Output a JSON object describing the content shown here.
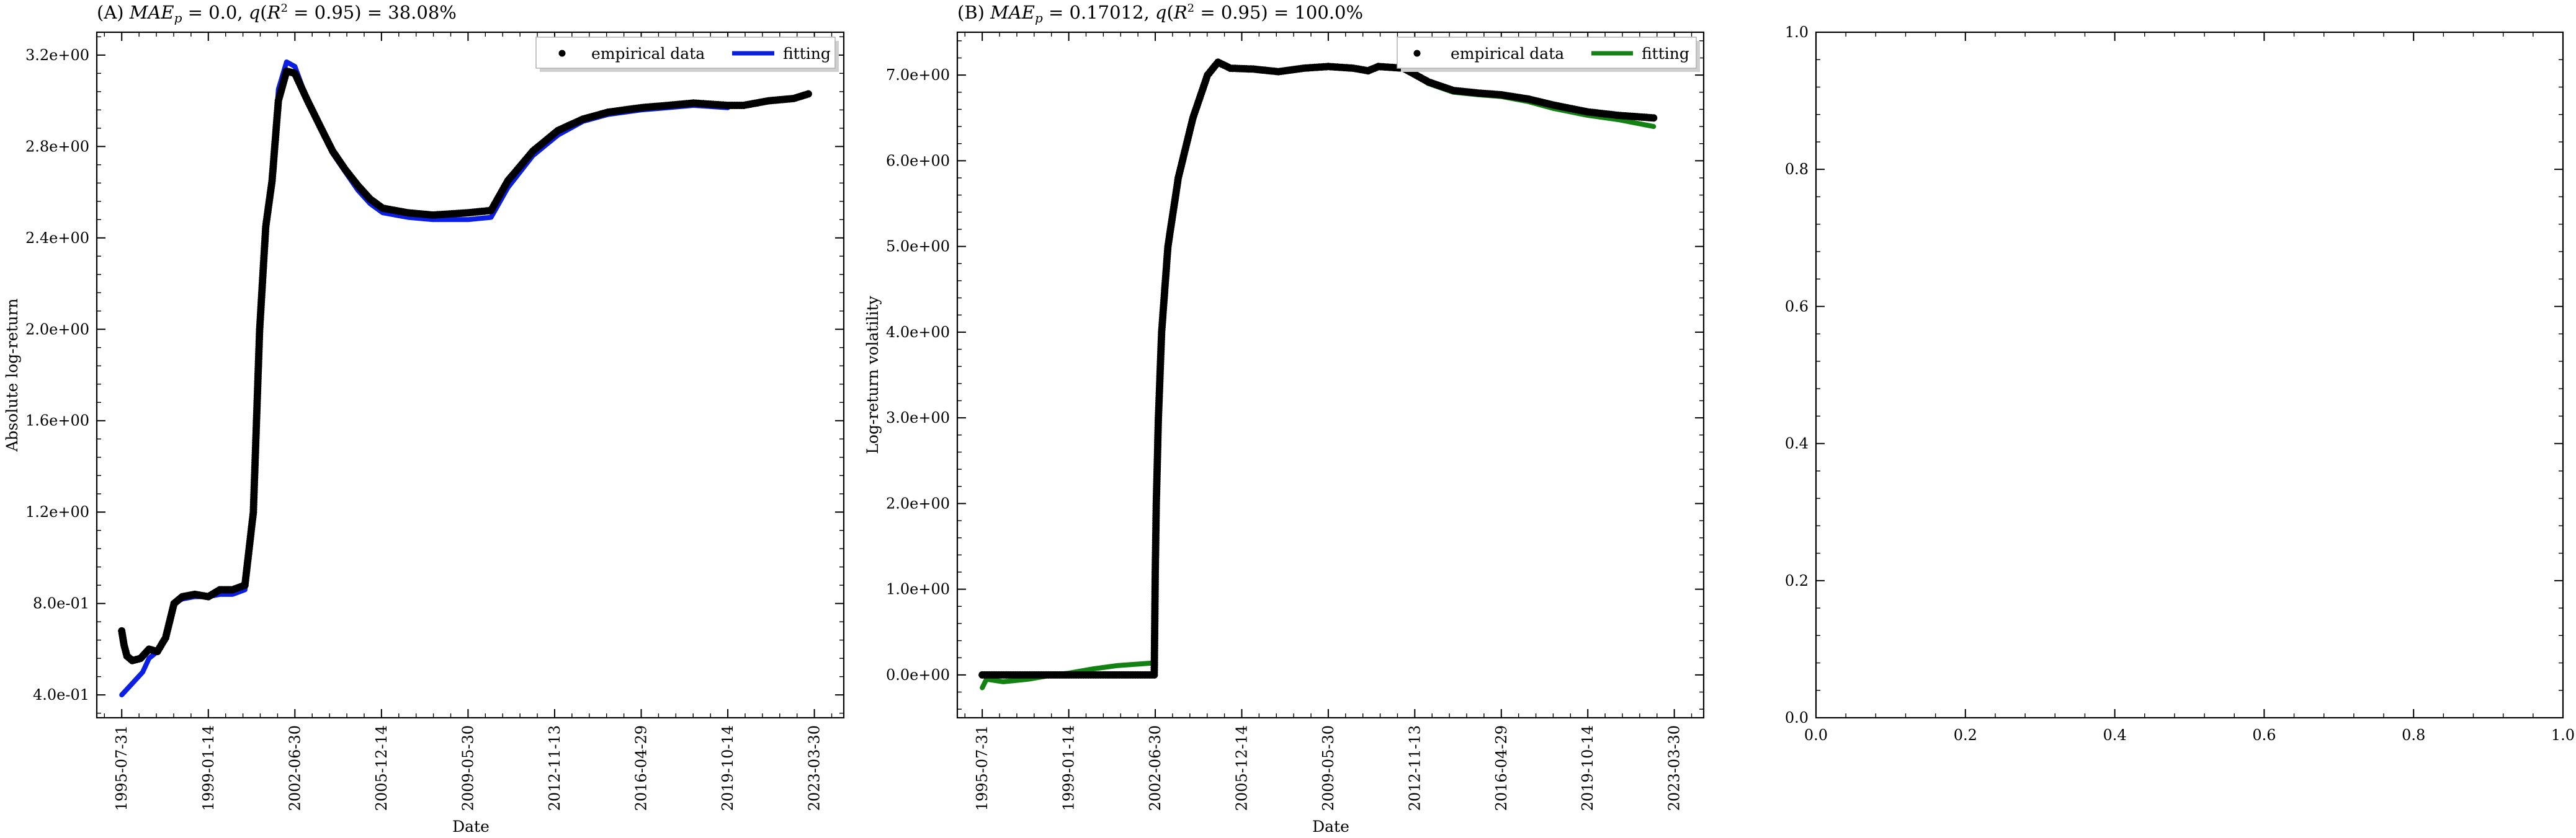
{
  "chart_data": [
    {
      "type": "scatter",
      "title": "(A) MAE_p = 0.0, q(R² = 0.95) = 38.08%",
      "title_parts": {
        "label": "(A) ",
        "mae": "MAE",
        "mae_sub": "p",
        "mae_value": " = 0.0, ",
        "q": "q",
        "q_open": "(",
        "r": "R",
        "r_sup": "2",
        "q_rest": " = 0.95) = 38.08%"
      },
      "xlabel": "Date",
      "ylabel": "Absolute log-return",
      "x_ticks": [
        "1995-07-31",
        "1999-01-14",
        "2002-06-30",
        "2005-12-14",
        "2009-05-30",
        "2012-11-13",
        "2016-04-29",
        "2019-10-14",
        "2023-03-30"
      ],
      "y_ticks": [
        "4.0e-01",
        "8.0e-01",
        "1.2e+00",
        "1.6e+00",
        "2.0e+00",
        "2.4e+00",
        "2.8e+00",
        "3.2e+00"
      ],
      "y_tick_values": [
        0.4,
        0.8,
        1.2,
        1.6,
        2.0,
        2.4,
        2.8,
        3.2
      ],
      "xlim": [
        "1994-08-01",
        "2024-06-01"
      ],
      "ylim": [
        0.3,
        3.3
      ],
      "legend": {
        "position": "top-right",
        "entries": [
          "empirical data",
          "fitting"
        ]
      },
      "series": [
        {
          "name": "empirical data",
          "style": "dots",
          "color": "#000000",
          "points": [
            [
              "1995-07-31",
              0.68
            ],
            [
              "1995-09-01",
              0.62
            ],
            [
              "1995-10-15",
              0.57
            ],
            [
              "1996-01-01",
              0.55
            ],
            [
              "1996-05-01",
              0.56
            ],
            [
              "1996-09-01",
              0.6
            ],
            [
              "1997-01-01",
              0.59
            ],
            [
              "1997-05-01",
              0.65
            ],
            [
              "1997-09-01",
              0.8
            ],
            [
              "1998-01-01",
              0.83
            ],
            [
              "1998-07-01",
              0.84
            ],
            [
              "1999-01-14",
              0.83
            ],
            [
              "1999-07-01",
              0.86
            ],
            [
              "2000-01-01",
              0.86
            ],
            [
              "2000-07-01",
              0.88
            ],
            [
              "2000-11-01",
              1.2
            ],
            [
              "2001-02-01",
              2.0
            ],
            [
              "2001-05-01",
              2.45
            ],
            [
              "2001-08-01",
              2.65
            ],
            [
              "2001-11-01",
              3.0
            ],
            [
              "2002-03-01",
              3.13
            ],
            [
              "2002-06-30",
              3.12
            ],
            [
              "2003-01-01",
              3.0
            ],
            [
              "2003-07-01",
              2.89
            ],
            [
              "2004-01-01",
              2.78
            ],
            [
              "2004-07-01",
              2.7
            ],
            [
              "2005-01-01",
              2.63
            ],
            [
              "2005-07-01",
              2.57
            ],
            [
              "2006-01-01",
              2.53
            ],
            [
              "2007-01-01",
              2.51
            ],
            [
              "2008-01-01",
              2.5
            ],
            [
              "2009-05-30",
              2.51
            ],
            [
              "2010-05-01",
              2.52
            ],
            [
              "2011-01-01",
              2.65
            ],
            [
              "2012-01-01",
              2.78
            ],
            [
              "2013-01-01",
              2.87
            ],
            [
              "2014-01-01",
              2.92
            ],
            [
              "2015-01-01",
              2.95
            ],
            [
              "2016-04-29",
              2.97
            ],
            [
              "2017-06-01",
              2.98
            ],
            [
              "2018-06-01",
              2.99
            ],
            [
              "2019-10-14",
              2.98
            ],
            [
              "2020-06-01",
              2.98
            ],
            [
              "2021-06-01",
              3.0
            ],
            [
              "2022-06-01",
              3.01
            ],
            [
              "2023-01-01",
              3.03
            ]
          ]
        },
        {
          "name": "fitting",
          "style": "line",
          "color": "#0a1ee6",
          "points": [
            [
              "1995-07-31",
              0.4
            ],
            [
              "1995-12-01",
              0.44
            ],
            [
              "1996-06-01",
              0.5
            ],
            [
              "1996-09-01",
              0.56
            ],
            [
              "1997-01-01",
              0.59
            ],
            [
              "1997-05-01",
              0.65
            ],
            [
              "1997-09-01",
              0.8
            ],
            [
              "1998-01-01",
              0.82
            ],
            [
              "1998-07-01",
              0.83
            ],
            [
              "1999-01-14",
              0.83
            ],
            [
              "1999-07-01",
              0.84
            ],
            [
              "2000-01-01",
              0.84
            ],
            [
              "2000-07-01",
              0.86
            ],
            [
              "2000-11-01",
              1.2
            ],
            [
              "2001-02-01",
              2.0
            ],
            [
              "2001-05-01",
              2.45
            ],
            [
              "2001-08-01",
              2.65
            ],
            [
              "2001-11-01",
              3.05
            ],
            [
              "2002-03-01",
              3.17
            ],
            [
              "2002-06-30",
              3.15
            ],
            [
              "2003-01-01",
              3.0
            ],
            [
              "2003-07-01",
              2.88
            ],
            [
              "2004-01-01",
              2.77
            ],
            [
              "2004-07-01",
              2.69
            ],
            [
              "2005-01-01",
              2.61
            ],
            [
              "2005-07-01",
              2.55
            ],
            [
              "2006-01-01",
              2.51
            ],
            [
              "2007-01-01",
              2.49
            ],
            [
              "2008-01-01",
              2.48
            ],
            [
              "2009-05-30",
              2.48
            ],
            [
              "2010-05-01",
              2.49
            ],
            [
              "2011-01-01",
              2.62
            ],
            [
              "2012-01-01",
              2.76
            ],
            [
              "2013-01-01",
              2.85
            ],
            [
              "2014-01-01",
              2.91
            ],
            [
              "2015-01-01",
              2.94
            ],
            [
              "2016-04-29",
              2.96
            ],
            [
              "2017-06-01",
              2.97
            ],
            [
              "2018-06-01",
              2.98
            ],
            [
              "2019-10-14",
              2.97
            ]
          ]
        }
      ]
    },
    {
      "type": "scatter",
      "title": "(B) MAE_p = 0.17012, q(R² = 0.95) = 100.0%",
      "title_parts": {
        "label": "(B) ",
        "mae": "MAE",
        "mae_sub": "p",
        "mae_value": " = 0.17012, ",
        "q": "q",
        "q_open": "(",
        "r": "R",
        "r_sup": "2",
        "q_rest": " = 0.95) = 100.0%"
      },
      "xlabel": "Date",
      "ylabel": "Log-return volatility",
      "x_ticks": [
        "1995-07-31",
        "1999-01-14",
        "2002-06-30",
        "2005-12-14",
        "2009-05-30",
        "2012-11-13",
        "2016-04-29",
        "2019-10-14",
        "2023-03-30"
      ],
      "y_ticks": [
        "0.0e+00",
        "1.0e+00",
        "2.0e+00",
        "3.0e+00",
        "4.0e+00",
        "5.0e+00",
        "6.0e+00",
        "7.0e+00"
      ],
      "y_tick_values": [
        0,
        1,
        2,
        3,
        4,
        5,
        6,
        7
      ],
      "xlim": [
        "1994-08-01",
        "2024-06-01"
      ],
      "ylim": [
        -0.5,
        7.5
      ],
      "legend": {
        "position": "top-right",
        "entries": [
          "empirical data",
          "fitting"
        ]
      },
      "series": [
        {
          "name": "empirical data",
          "style": "dots",
          "color": "#000000",
          "points": [
            [
              "1995-07-31",
              0.0
            ],
            [
              "1997-01-01",
              0.0
            ],
            [
              "1998-06-01",
              0.0
            ],
            [
              "1999-01-14",
              0.0
            ],
            [
              "2000-06-01",
              0.0
            ],
            [
              "2001-06-01",
              0.0
            ],
            [
              "2002-06-15",
              0.0
            ],
            [
              "2002-06-30",
              1.2
            ],
            [
              "2002-07-15",
              2.0
            ],
            [
              "2002-08-15",
              3.0
            ],
            [
              "2002-10-01",
              4.0
            ],
            [
              "2003-01-01",
              5.0
            ],
            [
              "2003-06-01",
              5.8
            ],
            [
              "2004-01-01",
              6.5
            ],
            [
              "2004-08-01",
              7.0
            ],
            [
              "2005-01-01",
              7.15
            ],
            [
              "2005-07-01",
              7.08
            ],
            [
              "2006-06-01",
              7.07
            ],
            [
              "2007-06-01",
              7.04
            ],
            [
              "2008-06-01",
              7.08
            ],
            [
              "2009-05-30",
              7.1
            ],
            [
              "2010-06-01",
              7.08
            ],
            [
              "2011-01-01",
              7.05
            ],
            [
              "2011-06-01",
              7.1
            ],
            [
              "2012-06-01",
              7.08
            ],
            [
              "2013-06-01",
              6.92
            ],
            [
              "2014-06-01",
              6.82
            ],
            [
              "2015-06-01",
              6.79
            ],
            [
              "2016-04-29",
              6.77
            ],
            [
              "2017-06-01",
              6.72
            ],
            [
              "2018-06-01",
              6.65
            ],
            [
              "2019-10-14",
              6.57
            ],
            [
              "2021-01-01",
              6.53
            ],
            [
              "2022-06-01",
              6.5
            ]
          ]
        },
        {
          "name": "fitting",
          "style": "line",
          "color": "#128212",
          "points": [
            [
              "1995-07-31",
              -0.15
            ],
            [
              "1995-10-01",
              -0.05
            ],
            [
              "1996-06-01",
              -0.08
            ],
            [
              "1997-06-01",
              -0.05
            ],
            [
              "1998-06-01",
              0.0
            ],
            [
              "1999-01-14",
              0.02
            ],
            [
              "2000-01-01",
              0.07
            ],
            [
              "2001-01-01",
              0.11
            ],
            [
              "2002-06-15",
              0.14
            ],
            [
              "2002-06-30",
              1.2
            ],
            [
              "2002-07-15",
              2.0
            ],
            [
              "2002-08-15",
              3.0
            ],
            [
              "2002-10-01",
              4.0
            ],
            [
              "2003-01-01",
              5.0
            ],
            [
              "2003-06-01",
              5.8
            ],
            [
              "2004-01-01",
              6.5
            ],
            [
              "2004-08-01",
              7.0
            ],
            [
              "2005-01-01",
              7.15
            ],
            [
              "2005-07-01",
              7.08
            ],
            [
              "2006-06-01",
              7.07
            ],
            [
              "2007-06-01",
              7.04
            ],
            [
              "2008-06-01",
              7.08
            ],
            [
              "2009-05-30",
              7.1
            ],
            [
              "2010-06-01",
              7.08
            ],
            [
              "2011-01-01",
              7.05
            ],
            [
              "2011-06-01",
              7.1
            ],
            [
              "2012-06-01",
              7.08
            ],
            [
              "2013-06-01",
              6.9
            ],
            [
              "2014-06-01",
              6.8
            ],
            [
              "2015-06-01",
              6.77
            ],
            [
              "2016-04-29",
              6.75
            ],
            [
              "2017-06-01",
              6.69
            ],
            [
              "2018-06-01",
              6.61
            ],
            [
              "2019-10-14",
              6.53
            ],
            [
              "2021-01-01",
              6.48
            ],
            [
              "2022-06-01",
              6.4
            ]
          ]
        }
      ]
    },
    {
      "type": "scatter",
      "title": "",
      "xlabel": "",
      "ylabel": "",
      "x_ticks": [
        "0.0",
        "0.2",
        "0.4",
        "0.6",
        "0.8",
        "1.0"
      ],
      "y_ticks": [
        "0.0",
        "0.2",
        "0.4",
        "0.6",
        "0.8",
        "1.0"
      ],
      "xlim": [
        0,
        1
      ],
      "ylim": [
        0,
        1
      ],
      "series": []
    }
  ]
}
